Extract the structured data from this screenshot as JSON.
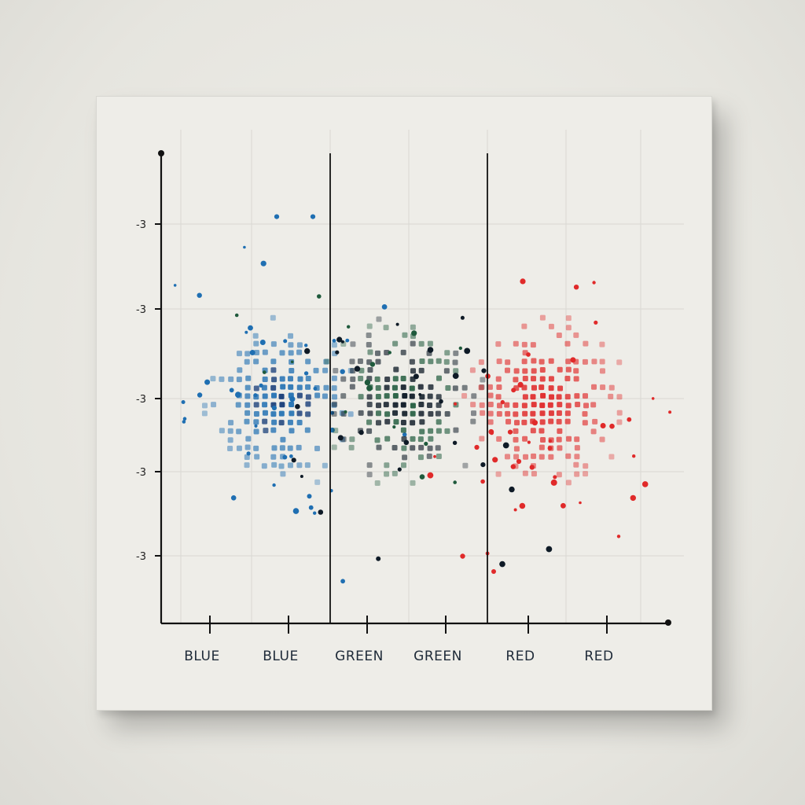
{
  "chart_data": {
    "type": "scatter",
    "title": "",
    "xlabel": "",
    "ylabel": "",
    "categories": [
      "BLUE",
      "BLUE",
      "GREEN",
      "GREEN",
      "RED",
      "RED"
    ],
    "y_tick_labels": [
      "-3",
      "-3",
      "-3",
      "-3",
      "-3"
    ],
    "grid": true,
    "series": [
      {
        "color": "#1f6fb2",
        "center": 1.5,
        "spread": 1.0,
        "count": 260
      },
      {
        "color": "#1f5a3c",
        "center": 3.0,
        "spread": 0.9,
        "count": 320
      },
      {
        "color": "#e02a2a",
        "center": 4.7,
        "spread": 0.9,
        "count": 240
      }
    ]
  },
  "colors": {
    "blue": "#1f6fb2",
    "green": "#1f5a3c",
    "dark": "#0e1a26",
    "red": "#e02a2a",
    "axis": "#111111",
    "grid": "#d9d8d2"
  }
}
